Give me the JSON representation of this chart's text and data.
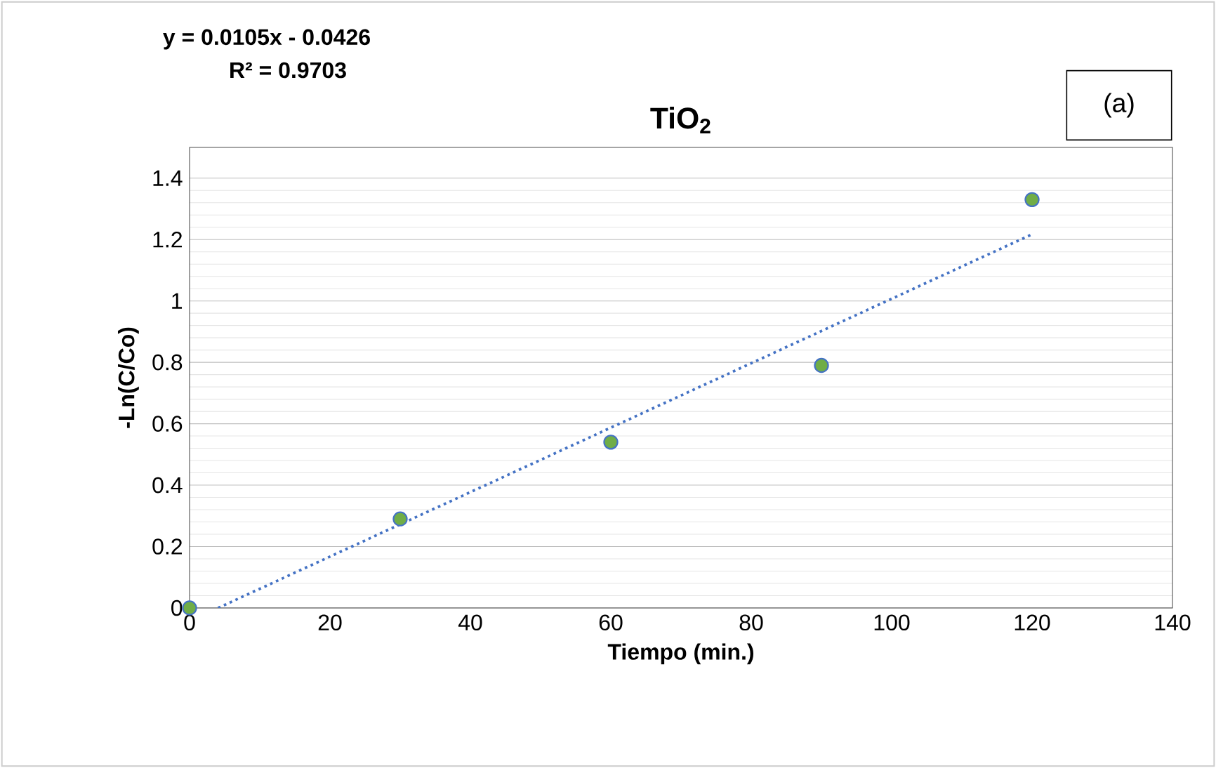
{
  "chart_data": {
    "type": "scatter",
    "title": "TiO$_{2}$",
    "xlabel": "Tiempo (min.)",
    "ylabel": "-Ln(C/Co)",
    "annotations": [
      "y = 0.0105x - 0.0426",
      "R² = 0.9703",
      "(a)"
    ],
    "series": [
      {
        "marker": "circle",
        "color": "#70ad47",
        "x": [
          0,
          30,
          60,
          90,
          120
        ],
        "values": [
          0,
          0.29,
          0.54,
          0.79,
          1.33
        ]
      },
      {
        "type": "line",
        "color": "#4472c4",
        "line_style": "dotted",
        "x": [
          4.06,
          120
        ],
        "values": [
          0,
          1.217
        ]
      }
    ],
    "xlim": [
      0,
      140
    ],
    "xticks": [
      0,
      20,
      40,
      60,
      80,
      100,
      120,
      140
    ],
    "ylim": [
      0,
      1.5
    ],
    "yticks": [
      0,
      0.2,
      0.4,
      0.6,
      0.8,
      1,
      1.2,
      1.4
    ],
    "grid": "y"
  }
}
